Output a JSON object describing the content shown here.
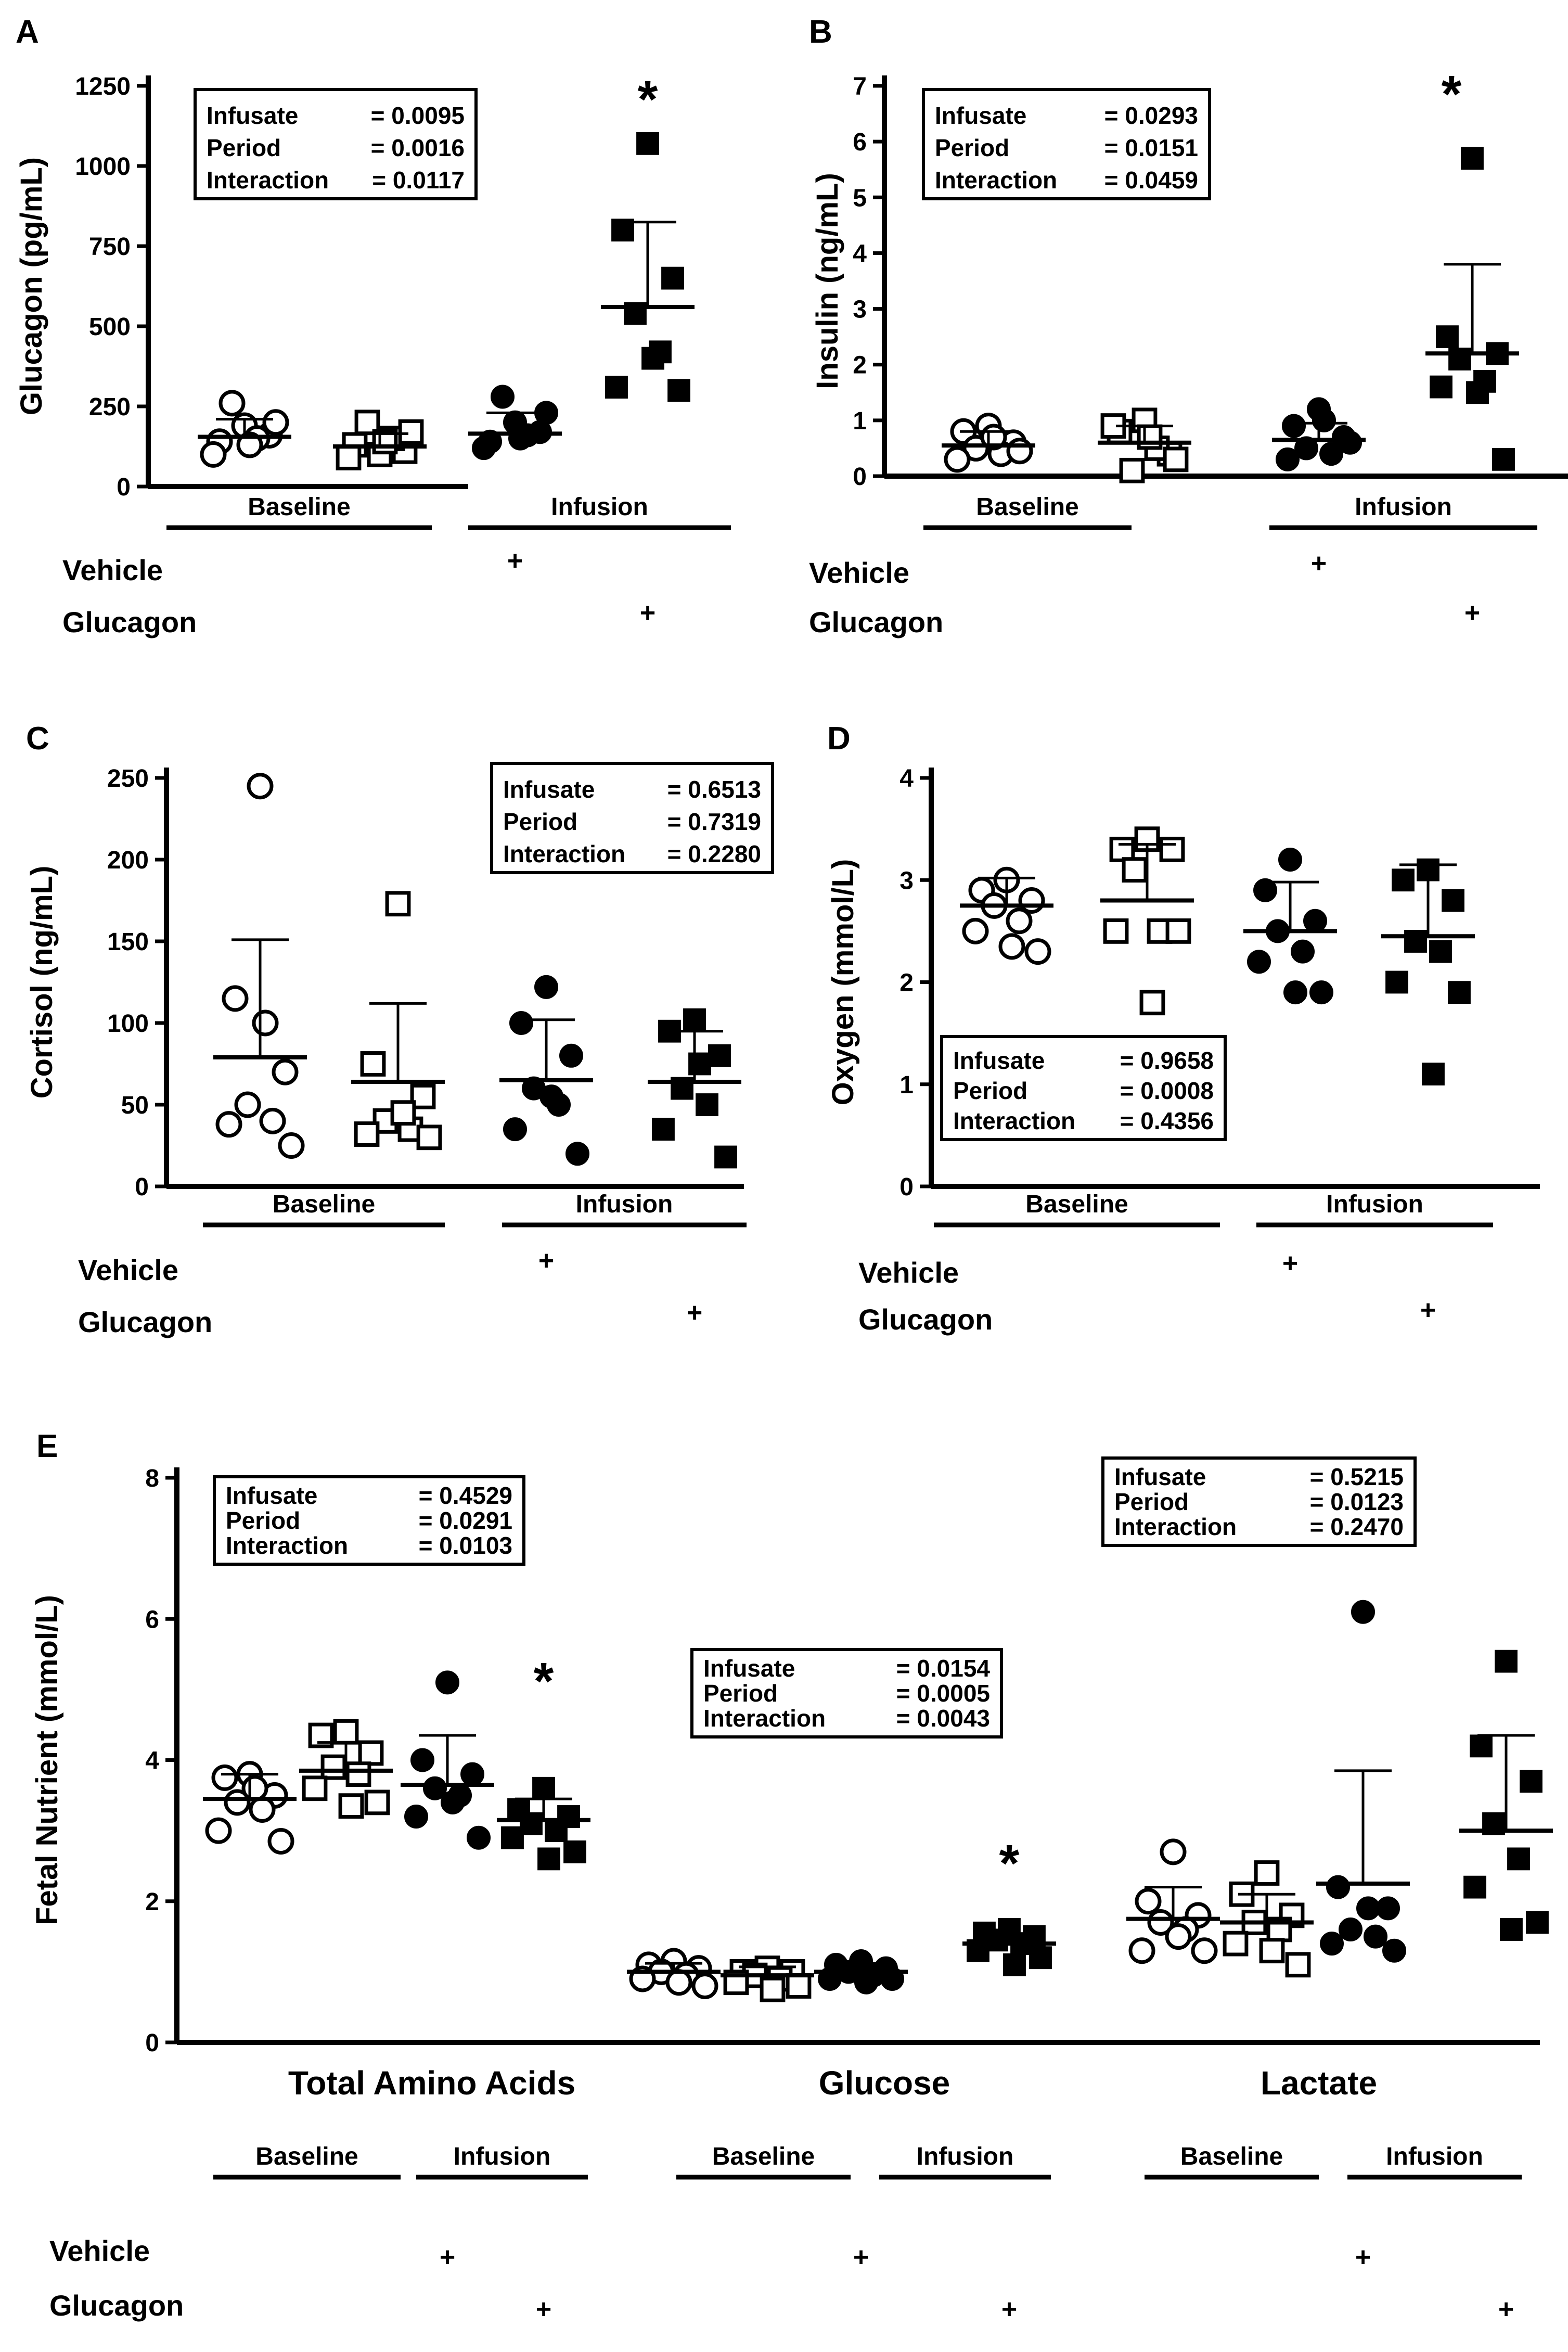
{
  "chart_data": [
    {
      "panel": "A",
      "type": "scatter",
      "ylabel": "Glucagon (pg/mL)",
      "ylim": [
        0,
        1250
      ],
      "yticks": [
        "0",
        "250",
        "500",
        "750",
        "1000",
        "1250"
      ],
      "stats": [
        [
          "Infusate",
          "= 0.0095"
        ],
        [
          "Period",
          "= 0.0016"
        ],
        [
          "Interaction",
          "= 0.0117"
        ]
      ],
      "groups": [
        "Baseline",
        "Infusion"
      ],
      "rows": {
        "vehicle": "Vehicle",
        "glucagon": "Glucagon",
        "mark": "+"
      },
      "significance": "*",
      "series": [
        {
          "name": "Baseline Vehicle",
          "marker": "open-circle",
          "mean": 155,
          "error": 55,
          "values": [
            190,
            140,
            160,
            260,
            150,
            100,
            200,
            130
          ]
        },
        {
          "name": "Baseline Glucagon",
          "marker": "open-square",
          "mean": 125,
          "error": 40,
          "values": [
            100,
            130,
            110,
            200,
            150,
            90,
            170,
            140
          ]
        },
        {
          "name": "Infusion Vehicle",
          "marker": "filled-circle",
          "mean": 165,
          "error": 65,
          "values": [
            200,
            140,
            170,
            280,
            160,
            120,
            230,
            150
          ]
        },
        {
          "name": "Infusion Glucagon",
          "marker": "filled-square",
          "mean": 560,
          "error": 265,
          "values": [
            1070,
            800,
            650,
            540,
            420,
            310,
            300,
            400
          ],
          "significant": true
        }
      ]
    },
    {
      "panel": "B",
      "type": "scatter",
      "ylabel": "Insulin (ng/mL)",
      "ylim": [
        0,
        7
      ],
      "yticks": [
        "0",
        "1",
        "2",
        "3",
        "4",
        "5",
        "6",
        "7"
      ],
      "stats": [
        [
          "Infusate",
          "= 0.0293"
        ],
        [
          "Period",
          "= 0.0151"
        ],
        [
          "Interaction",
          "= 0.0459"
        ]
      ],
      "groups": [
        "Baseline",
        "Infusion"
      ],
      "rows": {
        "vehicle": "Vehicle",
        "glucagon": "Glucagon",
        "mark": "+"
      },
      "significance": "*",
      "series": [
        {
          "name": "Baseline Vehicle",
          "marker": "open-circle",
          "mean": 0.55,
          "error": 0.25,
          "values": [
            0.9,
            0.8,
            0.6,
            0.5,
            0.4,
            0.3,
            0.45,
            0.7
          ]
        },
        {
          "name": "Baseline Glucagon",
          "marker": "open-square",
          "mean": 0.6,
          "error": 0.3,
          "values": [
            1.0,
            0.8,
            0.4,
            0.1,
            0.5,
            0.9,
            0.3,
            0.7
          ]
        },
        {
          "name": "Infusion Vehicle",
          "marker": "filled-circle",
          "mean": 0.65,
          "error": 0.3,
          "values": [
            1.2,
            0.9,
            0.7,
            0.5,
            0.4,
            0.3,
            0.6,
            1.0
          ]
        },
        {
          "name": "Infusion Glucagon",
          "marker": "filled-square",
          "mean": 2.2,
          "error": 1.6,
          "values": [
            5.7,
            2.5,
            2.2,
            2.1,
            1.7,
            1.6,
            0.3,
            1.5
          ],
          "significant": true
        }
      ]
    },
    {
      "panel": "C",
      "type": "scatter",
      "ylabel": "Cortisol (ng/mL)",
      "ylim": [
        0,
        250
      ],
      "yticks": [
        "0",
        "50",
        "100",
        "150",
        "200",
        "250"
      ],
      "stats": [
        [
          "Infusate",
          "= 0.6513"
        ],
        [
          "Period",
          "= 0.7319"
        ],
        [
          "Interaction",
          "= 0.2280"
        ]
      ],
      "groups": [
        "Baseline",
        "Infusion"
      ],
      "rows": {
        "vehicle": "Vehicle",
        "glucagon": "Glucagon",
        "mark": "+"
      },
      "significance": "",
      "series": [
        {
          "name": "Baseline Vehicle",
          "marker": "open-circle",
          "mean": 79,
          "error": 72,
          "values": [
            245,
            115,
            70,
            50,
            40,
            38,
            25,
            100
          ]
        },
        {
          "name": "Baseline Glucagon",
          "marker": "open-square",
          "mean": 64,
          "error": 48,
          "values": [
            173,
            75,
            55,
            40,
            35,
            32,
            30,
            45
          ]
        },
        {
          "name": "Infusion Vehicle",
          "marker": "filled-circle",
          "mean": 65,
          "error": 37,
          "values": [
            122,
            100,
            80,
            60,
            50,
            35,
            20,
            55
          ]
        },
        {
          "name": "Infusion Glucagon",
          "marker": "filled-square",
          "mean": 64,
          "error": 31,
          "values": [
            102,
            95,
            80,
            60,
            50,
            35,
            18,
            75
          ]
        }
      ]
    },
    {
      "panel": "D",
      "type": "scatter",
      "ylabel": "Oxygen (mmol/L)",
      "ylim": [
        0,
        4
      ],
      "yticks": [
        "0",
        "1",
        "2",
        "3",
        "4"
      ],
      "stats": [
        [
          "Infusate",
          "= 0.9658"
        ],
        [
          "Period",
          "= 0.0008"
        ],
        [
          "Interaction",
          "= 0.4356"
        ]
      ],
      "groups": [
        "Baseline",
        "Infusion"
      ],
      "rows": {
        "vehicle": "Vehicle",
        "glucagon": "Glucagon",
        "mark": "+"
      },
      "significance": "",
      "series": [
        {
          "name": "Baseline Vehicle",
          "marker": "open-circle",
          "mean": 2.75,
          "error": 0.27,
          "values": [
            3.0,
            2.9,
            2.8,
            2.75,
            2.6,
            2.5,
            2.3,
            2.35
          ]
        },
        {
          "name": "Baseline Glucagon",
          "marker": "open-square",
          "mean": 2.8,
          "error": 0.55,
          "values": [
            3.4,
            3.3,
            3.3,
            3.1,
            2.5,
            2.5,
            2.5,
            1.8
          ]
        },
        {
          "name": "Infusion Vehicle",
          "marker": "filled-circle",
          "mean": 2.5,
          "error": 0.48,
          "values": [
            3.2,
            2.9,
            2.6,
            2.5,
            2.3,
            2.2,
            1.9,
            1.9
          ]
        },
        {
          "name": "Infusion Glucagon",
          "marker": "filled-square",
          "mean": 2.45,
          "error": 0.7,
          "values": [
            3.1,
            3.0,
            2.8,
            2.4,
            2.3,
            2.0,
            1.9,
            1.1
          ]
        }
      ]
    },
    {
      "panel": "E",
      "type": "scatter",
      "ylabel": "Fetal Nutrient (mmol/L)",
      "ylim": [
        0,
        8
      ],
      "yticks": [
        "0",
        "2",
        "4",
        "6",
        "8"
      ],
      "rows": {
        "vehicle": "Vehicle",
        "glucagon": "Glucagon",
        "mark": "+"
      },
      "nutrients": [
        {
          "name": "Total Amino Acids",
          "groups": [
            "Baseline",
            "Infusion"
          ],
          "stats": [
            [
              "Infusate",
              "= 0.4529"
            ],
            [
              "Period",
              "= 0.0291"
            ],
            [
              "Interaction",
              "= 0.0103"
            ]
          ],
          "significance": "*",
          "series": [
            {
              "name": "Baseline Vehicle",
              "marker": "open-circle",
              "mean": 3.45,
              "error": 0.35,
              "values": [
                3.8,
                3.75,
                3.5,
                3.4,
                3.3,
                3.0,
                2.85,
                3.6
              ]
            },
            {
              "name": "Baseline Glucagon",
              "marker": "open-square",
              "mean": 3.85,
              "error": 0.4,
              "values": [
                4.4,
                4.35,
                4.1,
                3.9,
                3.8,
                3.6,
                3.4,
                3.35
              ]
            },
            {
              "name": "Infusion Vehicle",
              "marker": "filled-circle",
              "mean": 3.65,
              "error": 0.7,
              "values": [
                5.1,
                4.0,
                3.8,
                3.6,
                3.5,
                3.2,
                2.9,
                3.4
              ]
            },
            {
              "name": "Infusion Glucagon",
              "marker": "filled-square",
              "mean": 3.15,
              "error": 0.3,
              "values": [
                3.6,
                3.3,
                3.2,
                3.1,
                3.0,
                2.9,
                2.7,
                2.6
              ],
              "significant": true
            }
          ]
        },
        {
          "name": "Glucose",
          "groups": [
            "Baseline",
            "Infusion"
          ],
          "stats": [
            [
              "Infusate",
              "= 0.0154"
            ],
            [
              "Period",
              "= 0.0005"
            ],
            [
              "Interaction",
              "= 0.0043"
            ]
          ],
          "significance": "*",
          "series": [
            {
              "name": "Baseline Vehicle",
              "marker": "open-circle",
              "mean": 1.0,
              "error": 0.12,
              "values": [
                1.15,
                1.1,
                1.05,
                1.0,
                0.95,
                0.9,
                0.8,
                0.85
              ]
            },
            {
              "name": "Baseline Glucagon",
              "marker": "open-square",
              "mean": 0.95,
              "error": 0.12,
              "values": [
                1.05,
                1.0,
                1.0,
                0.95,
                0.9,
                0.85,
                0.8,
                0.75
              ]
            },
            {
              "name": "Infusion Vehicle",
              "marker": "filled-circle",
              "mean": 1.0,
              "error": 0.12,
              "values": [
                1.15,
                1.1,
                1.05,
                1.0,
                0.95,
                0.9,
                0.9,
                0.85
              ]
            },
            {
              "name": "Infusion Glucagon",
              "marker": "filled-square",
              "mean": 1.4,
              "error": 0.12,
              "values": [
                1.6,
                1.55,
                1.5,
                1.45,
                1.4,
                1.3,
                1.2,
                1.1
              ],
              "significant": true
            }
          ]
        },
        {
          "name": "Lactate",
          "groups": [
            "Baseline",
            "Infusion"
          ],
          "stats": [
            [
              "Infusate",
              "= 0.5215"
            ],
            [
              "Period",
              "= 0.0123"
            ],
            [
              "Interaction",
              "= 0.2470"
            ]
          ],
          "significance": "",
          "series": [
            {
              "name": "Baseline Vehicle",
              "marker": "open-circle",
              "mean": 1.75,
              "error": 0.45,
              "values": [
                2.7,
                2.0,
                1.8,
                1.7,
                1.6,
                1.3,
                1.3,
                1.5
              ]
            },
            {
              "name": "Baseline Glucagon",
              "marker": "open-square",
              "mean": 1.7,
              "error": 0.4,
              "values": [
                2.4,
                2.1,
                1.8,
                1.7,
                1.6,
                1.4,
                1.1,
                1.3
              ]
            },
            {
              "name": "Infusion Vehicle",
              "marker": "filled-circle",
              "mean": 2.25,
              "error": 1.6,
              "values": [
                6.1,
                2.2,
                1.9,
                1.6,
                1.5,
                1.4,
                1.3,
                1.9
              ]
            },
            {
              "name": "Infusion Glucagon",
              "marker": "filled-square",
              "mean": 3.0,
              "error": 1.35,
              "values": [
                5.4,
                4.2,
                3.7,
                3.1,
                2.6,
                2.2,
                1.7,
                1.6
              ]
            }
          ]
        }
      ]
    }
  ]
}
